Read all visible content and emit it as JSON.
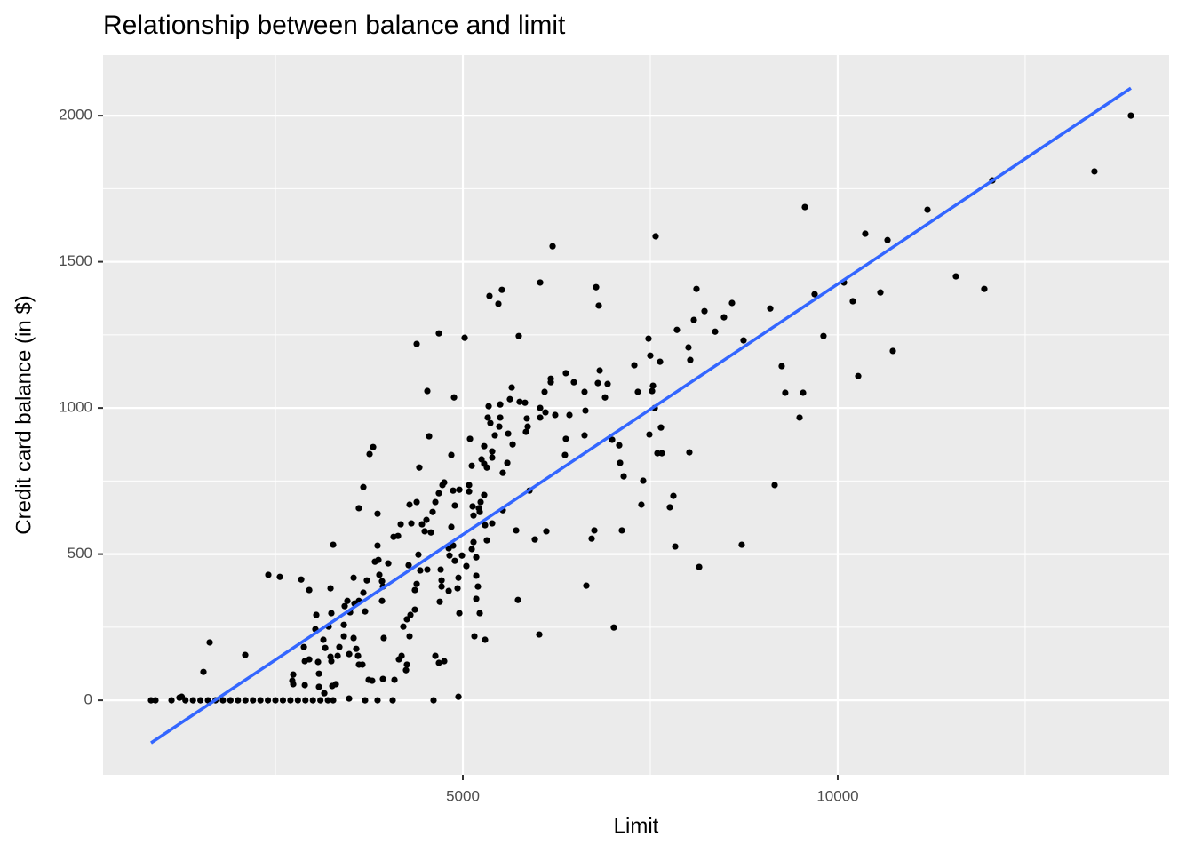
{
  "chart_data": {
    "type": "scatter",
    "title": "Relationship between balance and limit",
    "x_label": "Limit",
    "y_label": "Credit card balance (in $)",
    "xlim": [
      201,
      14420
    ],
    "ylim": [
      -255,
      2207
    ],
    "xticks": [
      5000,
      10000
    ],
    "yticks": [
      0,
      500,
      1000,
      1500,
      2000
    ],
    "x_minor_grid": [
      2500,
      7500,
      12500
    ],
    "y_minor_grid": [
      250,
      750,
      1250,
      1750
    ],
    "grid": true,
    "color": "#000000",
    "fit_line": {
      "x": [
        841,
        13910
      ],
      "values": [
        -146,
        2094
      ],
      "color": "#3366ff"
    },
    "x": [
      13910,
      13424,
      12062,
      11197,
      9562,
      10367,
      10664,
      7571,
      6197,
      6031,
      5355,
      5521,
      5474,
      6777,
      6813,
      8116,
      11576,
      11955,
      9692,
      10083,
      10569,
      10201,
      9100,
      8590,
      8223,
      8483,
      8081,
      8365,
      7855,
      8744,
      9810,
      8009,
      8033,
      7476,
      7500,
      7630,
      10735,
      10273,
      9253,
      9300,
      9538,
      9491,
      7287,
      7536,
      7334,
      7560,
      7524,
      6825,
      6801,
      6931,
      6896,
      6623,
      6374,
      6481,
      6173,
      6173,
      6090,
      6031,
      6102,
      6232,
      6422,
      6635,
      6031,
      5853,
      5758,
      5829,
      5652,
      5628,
      5498,
      5498,
      5344,
      5332,
      5367,
      5486,
      5427,
      5605,
      5865,
      5841,
      5095,
      5284,
      5391,
      5664,
      6623,
      6374,
      6362,
      7085,
      6991,
      7488,
      7642,
      7654,
      7595,
      8021,
      7097,
      7145,
      7405,
      7381,
      7808,
      7761,
      7832,
      8720,
      8152,
      9159,
      7014,
      6718,
      6754,
      7121,
      6647,
      5735,
      6019,
      6114,
      5960,
      5711,
      5889,
      5533,
      5593,
      5391,
      5284,
      5249,
      5320,
      5119,
      5083,
      4953,
      4870,
      5083,
      5284,
      5237,
      5130,
      5213,
      5142,
      5225,
      5533,
      5391,
      5296,
      5320,
      5142,
      5119,
      5178,
      5047,
      5178,
      5201,
      5178,
      5225,
      4941,
      4929,
      4953,
      4893,
      4988,
      4870,
      4811,
      4822,
      4846,
      4893,
      4728,
      4751,
      4680,
      4633,
      4597,
      4514,
      4574,
      4491,
      4455,
      4384,
      4313,
      4289,
      4171,
      4076,
      4135,
      4419,
      4550,
      4526,
      4384,
      4680,
      5024,
      4882,
      5746,
      4846,
      3803,
      3756,
      3673,
      3613,
      3862,
      3270,
      3862,
      3874,
      3827,
      4005,
      4277,
      4407,
      4526,
      4431,
      4384,
      4704,
      4811,
      4716,
      4716,
      4692,
      4360,
      3886,
      3922,
      3934,
      3922,
      3720,
      3673,
      3543,
      3555,
      3613,
      3696,
      3460,
      3424,
      3496,
      3246,
      3211,
      3033,
      3045,
      3413,
      3413,
      3353,
      3543,
      3578,
      3484,
      3330,
      3235,
      3246,
      3164,
      3140,
      3069,
      2951,
      3081,
      2737,
      2844,
      2951,
      3235,
      2880,
      2892,
      2725,
      2737,
      2892,
      3081,
      3258,
      3306,
      3152,
      3270,
      3483,
      3696,
      3862,
      4064,
      3934,
      4088,
      3791,
      3744,
      4183,
      4242,
      4147,
      4254,
      3945,
      3602,
      3614,
      3661,
      4206,
      4289,
      4254,
      4301,
      4360,
      4633,
      4680,
      4751,
      4609,
      4941,
      5154,
      5296,
      2405,
      2559,
      2097,
      1623,
      1540,
      1220,
      1114,
      841,
      900,
      1300,
      1400,
      1500,
      1600,
      1700,
      1800,
      1900,
      2000,
      2100,
      2200,
      2300,
      2400,
      2500,
      2600,
      2700,
      2800,
      2900,
      3000,
      3100,
      3200,
      1250
    ],
    "values": [
      2000,
      1809,
      1778,
      1678,
      1687,
      1596,
      1574,
      1587,
      1553,
      1429,
      1383,
      1404,
      1356,
      1413,
      1350,
      1407,
      1450,
      1407,
      1389,
      1429,
      1395,
      1365,
      1340,
      1359,
      1331,
      1310,
      1301,
      1261,
      1267,
      1231,
      1246,
      1207,
      1164,
      1237,
      1179,
      1158,
      1195,
      1109,
      1143,
      1052,
      1052,
      967,
      1146,
      1076,
      1055,
      1000,
      1058,
      1128,
      1085,
      1082,
      1036,
      1055,
      1119,
      1088,
      1100,
      1088,
      1055,
      1000,
      985,
      976,
      976,
      991,
      967,
      964,
      1021,
      1018,
      1070,
      1030,
      1012,
      967,
      1006,
      967,
      948,
      936,
      906,
      912,
      936,
      918,
      894,
      869,
      851,
      875,
      906,
      894,
      839,
      872,
      891,
      909,
      933,
      845,
      845,
      848,
      812,
      766,
      751,
      669,
      699,
      660,
      526,
      532,
      456,
      736,
      249,
      553,
      581,
      581,
      392,
      343,
      225,
      578,
      550,
      581,
      717,
      778,
      812,
      830,
      809,
      824,
      796,
      802,
      736,
      720,
      717,
      714,
      702,
      678,
      663,
      657,
      632,
      644,
      650,
      605,
      599,
      547,
      541,
      517,
      489,
      459,
      426,
      389,
      347,
      298,
      419,
      383,
      298,
      477,
      495,
      529,
      520,
      495,
      593,
      666,
      736,
      745,
      708,
      678,
      644,
      617,
      574,
      578,
      602,
      678,
      605,
      669,
      602,
      559,
      562,
      796,
      903,
      1058,
      1219,
      1255,
      1240,
      1036,
      1246,
      839,
      866,
      842,
      729,
      657,
      638,
      532,
      529,
      480,
      474,
      468,
      462,
      498,
      447,
      444,
      398,
      447,
      374,
      410,
      389,
      337,
      377,
      429,
      407,
      389,
      340,
      410,
      368,
      419,
      331,
      340,
      304,
      340,
      322,
      301,
      298,
      252,
      243,
      292,
      258,
      219,
      182,
      213,
      176,
      158,
      152,
      149,
      134,
      179,
      207,
      131,
      140,
      91,
      88,
      413,
      377,
      383,
      182,
      134,
      67,
      55,
      52,
      46,
      49,
      55,
      24,
      0,
      6,
      0,
      0,
      0,
      73,
      70,
      67,
      70,
      152,
      103,
      140,
      122,
      213,
      152,
      122,
      122,
      252,
      219,
      277,
      292,
      310,
      152,
      128,
      134,
      0,
      12,
      219,
      207,
      429,
      422,
      155,
      198,
      97,
      9,
      0,
      0,
      0,
      0,
      0,
      0,
      0,
      0,
      0,
      0,
      0,
      0,
      0,
      0,
      0,
      0,
      0,
      0,
      0,
      0,
      0,
      0,
      0,
      12
    ]
  }
}
